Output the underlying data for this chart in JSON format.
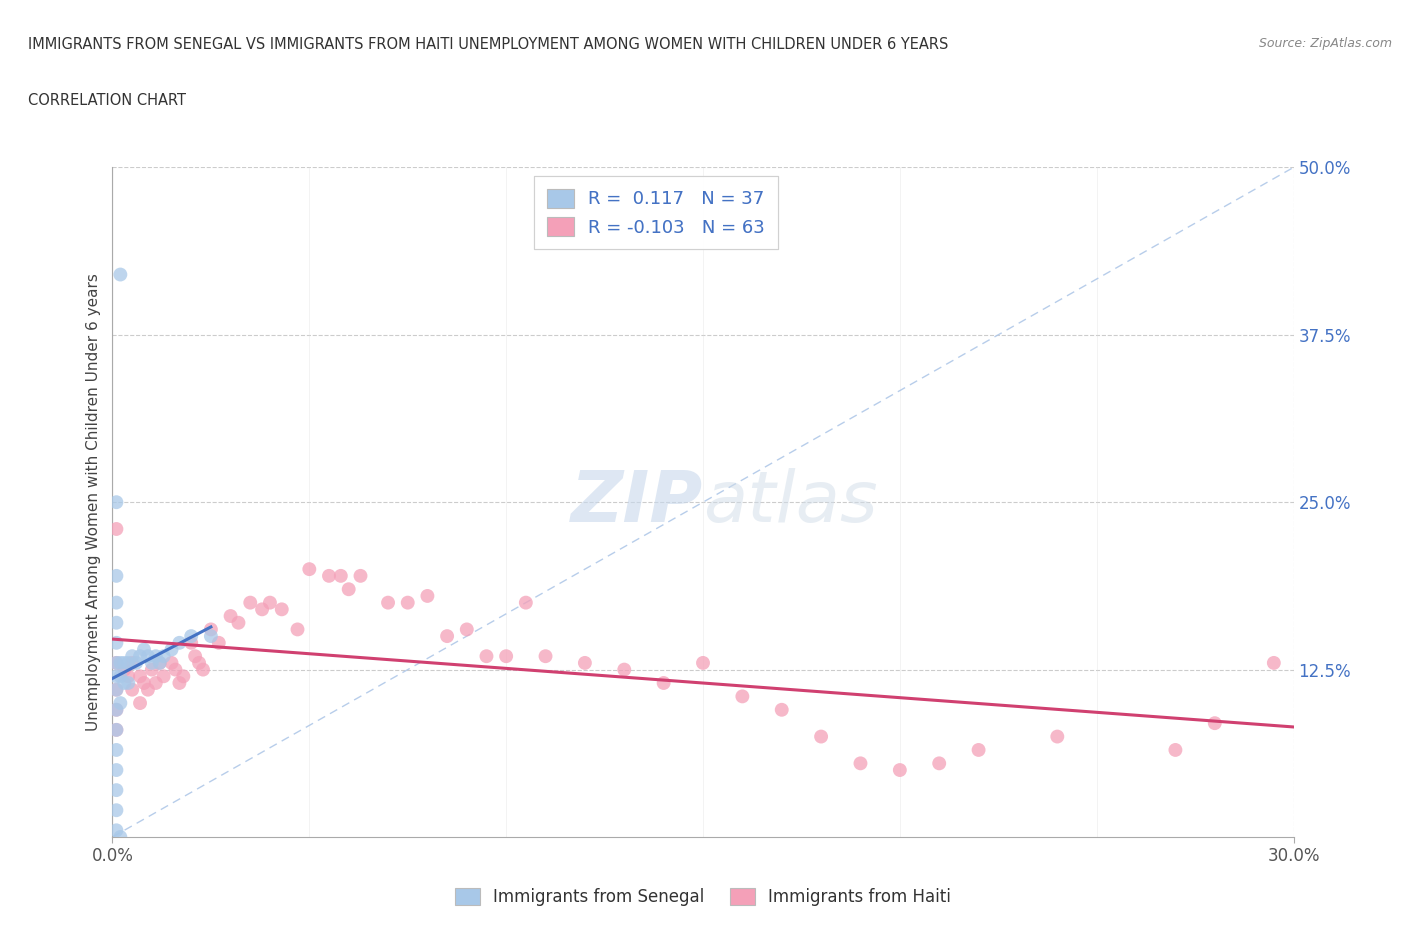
{
  "title_line1": "IMMIGRANTS FROM SENEGAL VS IMMIGRANTS FROM HAITI UNEMPLOYMENT AMONG WOMEN WITH CHILDREN UNDER 6 YEARS",
  "title_line2": "CORRELATION CHART",
  "source": "Source: ZipAtlas.com",
  "ylabel_label": "Unemployment Among Women with Children Under 6 years",
  "legend_senegal": "Immigrants from Senegal",
  "legend_haiti": "Immigrants from Haiti",
  "R_senegal": 0.117,
  "N_senegal": 37,
  "R_haiti": -0.103,
  "N_haiti": 63,
  "color_senegal": "#a8c8e8",
  "color_senegal_line": "#4472c4",
  "color_haiti": "#f4a0b8",
  "color_haiti_line": "#d04070",
  "color_diagonal": "#b0c8e8",
  "xlim": [
    0.0,
    0.3
  ],
  "ylim": [
    0.0,
    0.5
  ],
  "senegal_x": [
    0.002,
    0.001,
    0.001,
    0.001,
    0.001,
    0.001,
    0.001,
    0.001,
    0.001,
    0.001,
    0.001,
    0.001,
    0.001,
    0.001,
    0.001,
    0.001,
    0.002,
    0.002,
    0.002,
    0.003,
    0.003,
    0.004,
    0.004,
    0.005,
    0.006,
    0.007,
    0.008,
    0.009,
    0.01,
    0.011,
    0.012,
    0.013,
    0.015,
    0.017,
    0.02,
    0.025,
    0.002
  ],
  "senegal_y": [
    0.42,
    0.25,
    0.195,
    0.175,
    0.16,
    0.145,
    0.13,
    0.12,
    0.11,
    0.095,
    0.08,
    0.065,
    0.05,
    0.035,
    0.02,
    0.005,
    0.13,
    0.12,
    0.1,
    0.13,
    0.115,
    0.13,
    0.115,
    0.135,
    0.13,
    0.135,
    0.14,
    0.135,
    0.13,
    0.135,
    0.13,
    0.135,
    0.14,
    0.145,
    0.15,
    0.15,
    0.0
  ],
  "haiti_x": [
    0.001,
    0.001,
    0.001,
    0.001,
    0.001,
    0.003,
    0.004,
    0.005,
    0.005,
    0.007,
    0.007,
    0.008,
    0.009,
    0.01,
    0.011,
    0.012,
    0.013,
    0.015,
    0.016,
    0.017,
    0.018,
    0.02,
    0.021,
    0.022,
    0.023,
    0.025,
    0.027,
    0.03,
    0.032,
    0.035,
    0.038,
    0.04,
    0.043,
    0.047,
    0.05,
    0.055,
    0.058,
    0.06,
    0.063,
    0.07,
    0.075,
    0.08,
    0.085,
    0.09,
    0.095,
    0.1,
    0.105,
    0.11,
    0.12,
    0.13,
    0.14,
    0.15,
    0.16,
    0.17,
    0.18,
    0.19,
    0.2,
    0.21,
    0.22,
    0.24,
    0.27,
    0.28,
    0.295
  ],
  "haiti_y": [
    0.23,
    0.13,
    0.11,
    0.095,
    0.08,
    0.125,
    0.12,
    0.13,
    0.11,
    0.12,
    0.1,
    0.115,
    0.11,
    0.125,
    0.115,
    0.13,
    0.12,
    0.13,
    0.125,
    0.115,
    0.12,
    0.145,
    0.135,
    0.13,
    0.125,
    0.155,
    0.145,
    0.165,
    0.16,
    0.175,
    0.17,
    0.175,
    0.17,
    0.155,
    0.2,
    0.195,
    0.195,
    0.185,
    0.195,
    0.175,
    0.175,
    0.18,
    0.15,
    0.155,
    0.135,
    0.135,
    0.175,
    0.135,
    0.13,
    0.125,
    0.115,
    0.13,
    0.105,
    0.095,
    0.075,
    0.055,
    0.05,
    0.055,
    0.065,
    0.075,
    0.065,
    0.085,
    0.13
  ]
}
